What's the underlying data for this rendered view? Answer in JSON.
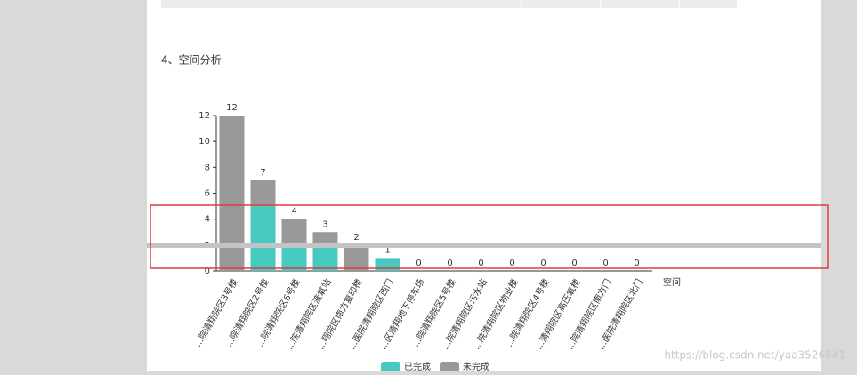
{
  "heading": "4、空间分析",
  "watermark": "https://blog.csdn.net/yaa3526641",
  "chart_data": {
    "type": "stacked-bar",
    "categories": [
      "...院清翔院区3号楼",
      "...院清翔院区2号楼",
      "...院清翔院区6号楼",
      "...院清翔院区液氧站",
      "...翔院区南方复印楼",
      "...医院清翔院区西门",
      "...区清翔地下停车场",
      "...院清翔院区5号楼",
      "...院清翔院区污水站",
      "...院清翔院区物业楼",
      "...院清翔院区4号楼",
      "...清翔院区高压氧楼",
      "...院清翔院区南方门",
      "...医院清翔院区北门"
    ],
    "series": [
      {
        "name": "已完成",
        "color": "#47c9bf",
        "values": [
          0,
          5,
          2,
          2,
          0,
          1,
          0,
          0,
          0,
          0,
          0,
          0,
          0,
          0
        ]
      },
      {
        "name": "未完成",
        "color": "#999999",
        "values": [
          12,
          2,
          2,
          1,
          2,
          0,
          0,
          0,
          0,
          0,
          0,
          0,
          0,
          0
        ]
      }
    ],
    "totals": [
      12,
      7,
      4,
      3,
      2,
      1,
      0,
      0,
      0,
      0,
      0,
      0,
      0,
      0
    ],
    "x_label": "空间",
    "ylim": [
      0,
      12
    ],
    "yticks": [
      0,
      2,
      4,
      6,
      8,
      10,
      12
    ]
  }
}
